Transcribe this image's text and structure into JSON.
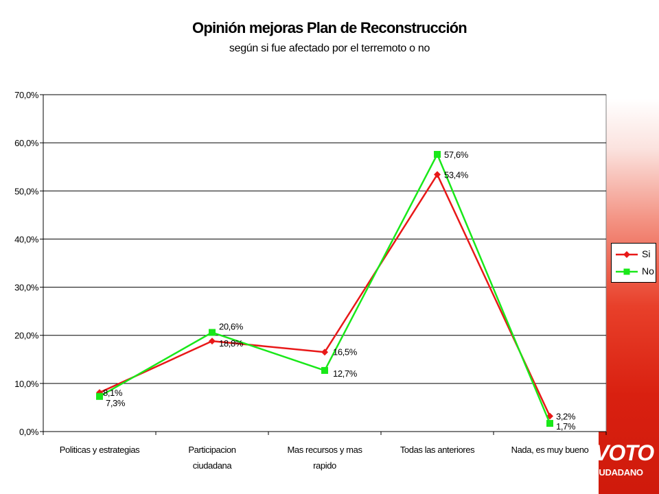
{
  "chart_data": {
    "type": "line",
    "title": "Opinión mejoras Plan de Reconstrucción",
    "subtitle": "según si fue afectado por el terremoto o no",
    "categories": [
      [
        "Politicas y estrategias"
      ],
      [
        "Participacion",
        "ciudadana"
      ],
      [
        "Mas recursos y mas",
        "rapido"
      ],
      [
        "Todas las anteriores"
      ],
      [
        "Nada, es muy bueno"
      ]
    ],
    "ylim": [
      0,
      70
    ],
    "yticks": [
      0,
      10,
      20,
      30,
      40,
      50,
      60,
      70
    ],
    "ytick_labels": [
      "0,0%",
      "10,0%",
      "20,0%",
      "30,0%",
      "40,0%",
      "50,0%",
      "60,0%",
      "70,0%"
    ],
    "grid": true,
    "legend_position": "right",
    "series": [
      {
        "name": "Si",
        "color": "#e81818",
        "marker": "diamond",
        "values": [
          8.1,
          18.8,
          16.5,
          53.4,
          3.2
        ],
        "labels": [
          "8,1%",
          "18,8%",
          "16,5%",
          "53,4%",
          "3,2%"
        ]
      },
      {
        "name": "No",
        "color": "#19e819",
        "marker": "square",
        "values": [
          7.3,
          20.6,
          12.7,
          57.6,
          1.7
        ],
        "labels": [
          "7,3%",
          "20,6%",
          "12,7%",
          "57,6%",
          "1,7%"
        ]
      }
    ]
  },
  "brand": {
    "logo_main": "VOTO",
    "logo_sub": "CIUDADANO",
    "band_color": "#d92010"
  }
}
